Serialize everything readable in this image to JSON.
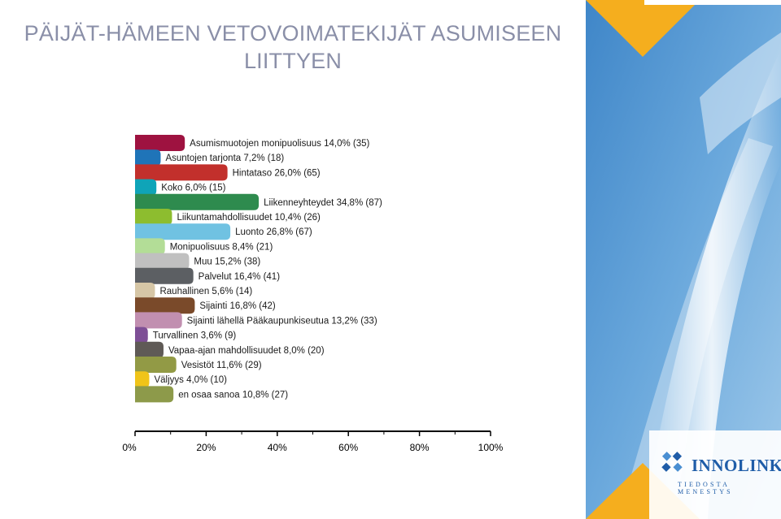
{
  "title": "PÄIJÄT-HÄMEEN VETOVOIMATEKIJÄT ASUMISEEN LIITTYEN",
  "chart_data": {
    "type": "bar",
    "orientation": "horizontal",
    "title": "PÄIJÄT-HÄMEEN VETOVOIMATEKIJÄT ASUMISEEN LIITTYEN",
    "xlim": [
      0,
      100
    ],
    "xticks": [
      "0%",
      "20%",
      "40%",
      "60%",
      "80%",
      "100%"
    ],
    "grid": false,
    "bars": [
      {
        "label": "Asumismuotojen monipuolisuus 14,0% (35)",
        "value": 14.0,
        "count": 35,
        "color": "#9e1240"
      },
      {
        "label": "Asuntojen tarjonta 7,2% (18)",
        "value": 7.2,
        "count": 18,
        "color": "#1f74b8"
      },
      {
        "label": "Hintataso 26,0% (65)",
        "value": 26.0,
        "count": 65,
        "color": "#c2302c"
      },
      {
        "label": "Koko 6,0% (15)",
        "value": 6.0,
        "count": 15,
        "color": "#0fa4b8"
      },
      {
        "label": "Liikenneyhteydet 34,8% (87)",
        "value": 34.8,
        "count": 87,
        "color": "#2e8b4e"
      },
      {
        "label": "Liikuntamahdollisuudet 10,4% (26)",
        "value": 10.4,
        "count": 26,
        "color": "#8dbd2f"
      },
      {
        "label": "Luonto 26,8% (67)",
        "value": 26.8,
        "count": 67,
        "color": "#70c2e2"
      },
      {
        "label": "Monipuolisuus 8,4% (21)",
        "value": 8.4,
        "count": 21,
        "color": "#b3dd97"
      },
      {
        "label": "Muu 15,2% (38)",
        "value": 15.2,
        "count": 38,
        "color": "#c0c0c0"
      },
      {
        "label": "Palvelut 16,4% (41)",
        "value": 16.4,
        "count": 41,
        "color": "#5c5f63"
      },
      {
        "label": "Rauhallinen 5,6% (14)",
        "value": 5.6,
        "count": 14,
        "color": "#d6c6a6"
      },
      {
        "label": "Sijainti 16,8% (42)",
        "value": 16.8,
        "count": 42,
        "color": "#7a4a2a"
      },
      {
        "label": "Sijainti lähellä Pääkaupunkiseutua 13,2% (33)",
        "value": 13.2,
        "count": 33,
        "color": "#c18fb0"
      },
      {
        "label": "Turvallinen 3,6% (9)",
        "value": 3.6,
        "count": 9,
        "color": "#7e4f96"
      },
      {
        "label": "Vapaa-ajan mahdollisuudet 8,0% (20)",
        "value": 8.0,
        "count": 20,
        "color": "#5f5a56"
      },
      {
        "label": "Vesistöt 11,6% (29)",
        "value": 11.6,
        "count": 29,
        "color": "#929a45"
      },
      {
        "label": "Väljyys 4,0% (10)",
        "value": 4.0,
        "count": 10,
        "color": "#f0c419"
      },
      {
        "label": "en osaa sanoa 10,8% (27)",
        "value": 10.8,
        "count": 27,
        "color": "#8d9a4a"
      }
    ]
  },
  "brand": {
    "name": "INNOLINK",
    "tagline": "TIEDOSTA MENESTYS",
    "logo_icon": "innolink-diamond-logo"
  },
  "colors": {
    "title": "#8a8fa8",
    "label": "#1a1a1a",
    "brand": "#1f5da8",
    "accent": "#f5ae1e"
  }
}
